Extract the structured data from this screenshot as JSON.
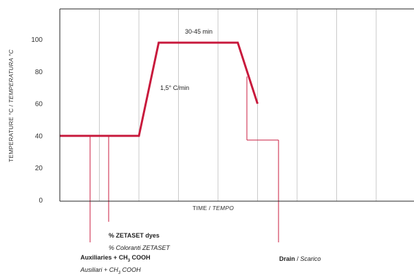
{
  "chart_data": {
    "type": "line",
    "title": "",
    "xlabel": "TIME / TEMPO",
    "xlabel_main": "TIME / ",
    "xlabel_italic": "TEMPO",
    "ylabel_main": "TEMPERATURE °C / ",
    "ylabel_italic": "TEMPERATURA °C",
    "ylim": [
      0,
      110
    ],
    "yticks": [
      "0",
      "20",
      "40",
      "60",
      "80",
      "100"
    ],
    "ytick_values": [
      0,
      20,
      40,
      60,
      80,
      100
    ],
    "grid": "vertical",
    "vgrid_count": 9,
    "series": [
      {
        "points": [
          [
            0,
            40
          ],
          [
            2,
            40
          ],
          [
            2.5,
            98
          ],
          [
            4.5,
            98
          ],
          [
            5,
            60
          ]
        ],
        "color": "#c8193c"
      }
    ],
    "annotations": {
      "hold": "30-45 min",
      "ramp": "1,5° C/min"
    },
    "callouts": {
      "auxiliaries": {
        "bold_a": "Auxiliaries + CH",
        "sub_a": "3",
        "bold_b": " COOH",
        "italic_a": "Ausiliari + CH",
        "sub_b": "3",
        "italic_b": " COOH"
      },
      "dyes": {
        "bold": "% ZETASET dyes",
        "italic": "% Coloranti ZETASET"
      },
      "drain": {
        "bold": "Drain",
        "plain": " / ",
        "italic": "Scarico"
      }
    },
    "colors": {
      "line": "#c8193c",
      "marker": "#c8193c",
      "axis": "#222222",
      "grid": "#c9c9c9"
    }
  }
}
